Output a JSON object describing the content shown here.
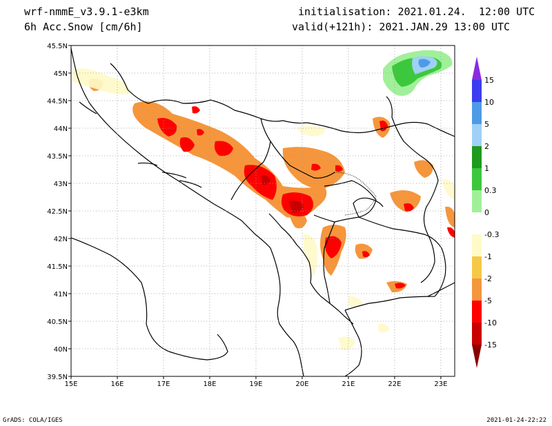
{
  "header": {
    "model": "wrf-nmmE_v3.9.1-e3km",
    "field": "6h Acc.Snow [cm/6h]",
    "initialisation": "initialisation: 2021.01.24.  12:00 UTC",
    "valid": "valid(+121h): 2021.JAN.29 13:00 UTC"
  },
  "footer": {
    "software": "GrADS: COLA/IGES",
    "timestamp": "2021-01-24-22:22"
  },
  "map": {
    "lon_range": [
      15,
      23.3
    ],
    "lat_range": [
      39.5,
      45.5
    ],
    "lon_ticks": [
      "15E",
      "16E",
      "17E",
      "18E",
      "19E",
      "20E",
      "21E",
      "22E",
      "23E"
    ],
    "lat_ticks": [
      "39.5N",
      "40N",
      "40.5N",
      "41N",
      "41.5N",
      "42N",
      "42.5N",
      "43N",
      "43.5N",
      "44N",
      "44.5N",
      "45N",
      "45.5N"
    ]
  },
  "legend": {
    "labels": [
      "15",
      "10",
      "5",
      "2",
      "1",
      "0.3",
      "0",
      "-0.3",
      "-1",
      "-2",
      "-5",
      "-10",
      "-15"
    ],
    "colors": [
      "#8a2be2",
      "#3c3cf0",
      "#4d9be6",
      "#a0d0f5",
      "#1e9a1e",
      "#3cc83c",
      "#a0f09a",
      "#ffffff",
      "#fffac8",
      "#f5c846",
      "#f5963c",
      "#ff0000",
      "#c80000",
      "#8c0000"
    ]
  }
}
